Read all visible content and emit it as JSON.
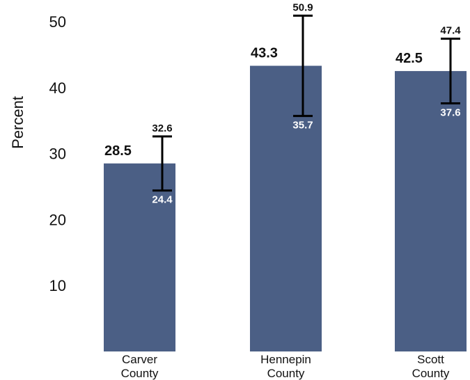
{
  "chart_data": {
    "type": "bar",
    "title": "",
    "xlabel": "",
    "ylabel": "Percent",
    "ylim": [
      0,
      50
    ],
    "yticks": [
      10,
      20,
      30,
      40,
      50
    ],
    "grid": false,
    "legend": "none",
    "bar_color": "#4b5f85",
    "categories": [
      [
        "Carver",
        "County"
      ],
      [
        "Hennepin",
        "County"
      ],
      [
        "Scott",
        "County"
      ]
    ],
    "values": [
      28.5,
      43.3,
      42.5
    ],
    "ci_lower": [
      24.4,
      35.7,
      37.6
    ],
    "ci_upper": [
      32.6,
      50.9,
      47.4
    ]
  }
}
